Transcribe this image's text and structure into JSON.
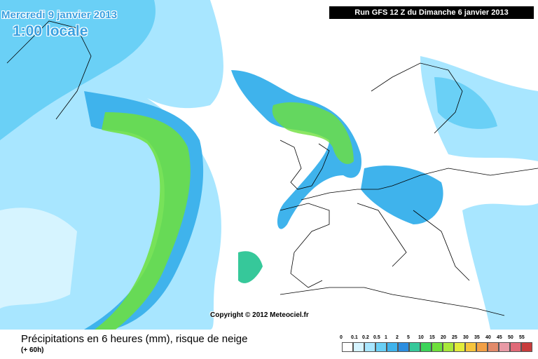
{
  "map": {
    "date": "Mercredi 9 janvier 2013",
    "time": "1:00 locale",
    "run": "Run GFS 12 Z du Dimanche 6 janvier 2013",
    "copyright": "Copyright © 2012 Meteociel.fr"
  },
  "footer": {
    "title": "Précipitations en 6 heures (mm), risque de neige",
    "lead": "(+ 60h)"
  },
  "legend": [
    {
      "label": 0,
      "color": "#ffffff"
    },
    {
      "label": 0.1,
      "color": "#d6f4ff"
    },
    {
      "label": 0.2,
      "color": "#a8e6ff"
    },
    {
      "label": 0.5,
      "color": "#6ad0f6"
    },
    {
      "label": 1,
      "color": "#3fb3ec"
    },
    {
      "label": 2,
      "color": "#2c8ee0"
    },
    {
      "label": 5,
      "color": "#36c89a"
    },
    {
      "label": 10,
      "color": "#3cd45a"
    },
    {
      "label": 15,
      "color": "#6ee03c"
    },
    {
      "label": 20,
      "color": "#a8e83a"
    },
    {
      "label": 25,
      "color": "#e2ec3a"
    },
    {
      "label": 30,
      "color": "#f6c43c"
    },
    {
      "label": 35,
      "color": "#f2a046"
    },
    {
      "label": 40,
      "color": "#e28a6a"
    },
    {
      "label": 45,
      "color": "#e89aa6"
    },
    {
      "label": 50,
      "color": "#e06a78"
    },
    {
      "label": 55,
      "color": "#c83c3c"
    }
  ]
}
